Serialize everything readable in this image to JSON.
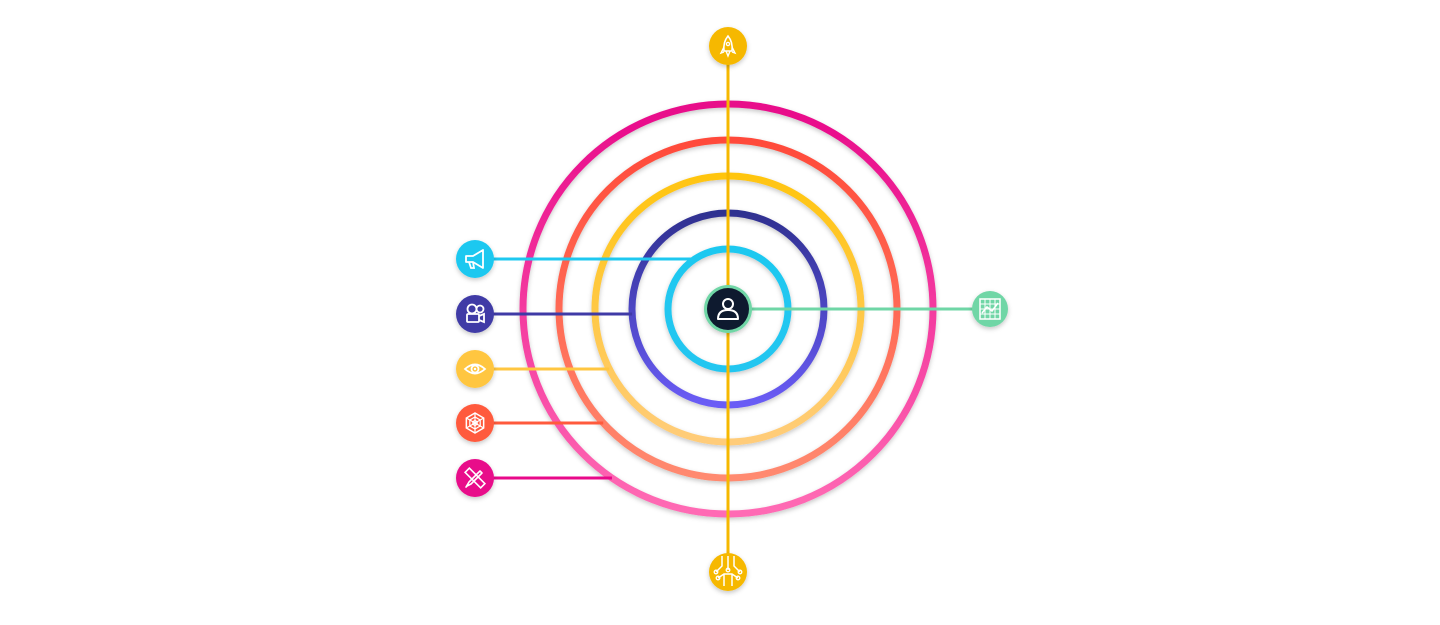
{
  "diagram": {
    "rings": [
      {
        "id": "ring-1",
        "from": "#1ec8f0",
        "to": "#24c6f0"
      },
      {
        "id": "ring-2",
        "from": "#2f3090",
        "to": "#6a5cf6"
      },
      {
        "id": "ring-3",
        "from": "#ffc510",
        "to": "#ffcc7a"
      },
      {
        "id": "ring-4",
        "from": "#ff4a3a",
        "to": "#ff8a70"
      },
      {
        "id": "ring-5",
        "from": "#e8098a",
        "to": "#ff6bb4"
      }
    ],
    "center": {
      "icon": "user-icon",
      "fill": "#0e1a2f",
      "border": "#6fd6a6"
    },
    "axis_color": "#f6b800",
    "top_node": {
      "icon": "rocket-icon",
      "color": "#f6b800"
    },
    "bottom_node": {
      "icon": "circuit-icon",
      "color": "#f6b800"
    },
    "right_node": {
      "icon": "grid-chart-icon",
      "color": "#6fd6a6"
    },
    "left_nodes": [
      {
        "icon": "megaphone-icon",
        "color": "#1ec8f0",
        "ring": 0
      },
      {
        "icon": "video-camera-icon",
        "color": "#3f3aa6",
        "ring": 1
      },
      {
        "icon": "eye-icon",
        "color": "#ffc640",
        "ring": 2
      },
      {
        "icon": "spider-web-icon",
        "color": "#ff5a3c",
        "ring": 3
      },
      {
        "icon": "pencil-ruler-icon",
        "color": "#e8098a",
        "ring": 4
      }
    ]
  }
}
